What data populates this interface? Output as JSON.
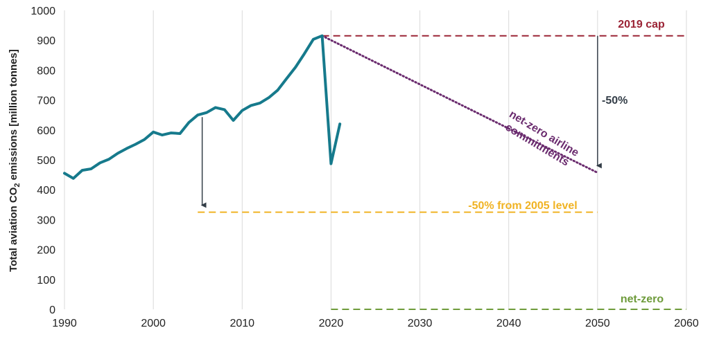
{
  "chart_data": {
    "type": "line",
    "ylabel_main": "Total aviation CO",
    "ylabel_sub": "2",
    "ylabel_rest": " emissions [million tonnes]",
    "xlim": [
      1990,
      2060
    ],
    "ylim": [
      0,
      1000
    ],
    "x_ticks": [
      1990,
      2000,
      2010,
      2020,
      2030,
      2040,
      2050,
      2060
    ],
    "y_ticks": [
      0,
      100,
      200,
      300,
      400,
      500,
      600,
      700,
      800,
      900,
      1000
    ],
    "grid": "vertical",
    "series": [
      {
        "color": "#167a8c",
        "x": [
          1990,
          1991,
          1992,
          1993,
          1994,
          1995,
          1996,
          1997,
          1998,
          1999,
          2000,
          2001,
          2002,
          2003,
          2004,
          2005,
          2006,
          2007,
          2008,
          2009,
          2010,
          2011,
          2012,
          2013,
          2014,
          2015,
          2016,
          2017,
          2018,
          2019,
          2020,
          2021
        ],
        "y": [
          455,
          438,
          465,
          470,
          490,
          502,
          522,
          538,
          552,
          568,
          593,
          583,
          590,
          588,
          625,
          650,
          658,
          675,
          668,
          632,
          665,
          682,
          690,
          708,
          733,
          772,
          810,
          855,
          903,
          915,
          487,
          620
        ]
      }
    ],
    "reference_lines": [
      {
        "label": "2019 cap",
        "color": "#9b2335",
        "style": "dashed",
        "x": [
          2019,
          2060
        ],
        "y": [
          915,
          915
        ]
      },
      {
        "label": "-50% from 2005 level",
        "color": "#f0b323",
        "style": "dashed",
        "x": [
          2005,
          2050
        ],
        "y": [
          325,
          325
        ]
      },
      {
        "label": "net-zero",
        "color": "#6e9b3b",
        "style": "dashed",
        "x": [
          2020,
          2060
        ],
        "y": [
          0,
          0
        ]
      },
      {
        "label": "net-zero airline commitments",
        "label_line1": "net-zero airline",
        "label_line2": "commitments",
        "color": "#6a2b6e",
        "style": "dotted",
        "x": [
          2019,
          2050
        ],
        "y": [
          915,
          457
        ]
      }
    ],
    "arrows": [
      {
        "label": "",
        "color": "#333d47",
        "x": 2005.5,
        "y_from": 643,
        "y_to": 330
      },
      {
        "label": "-50%",
        "color": "#333d47",
        "x": 2050,
        "y_from": 915,
        "y_to": 462
      }
    ]
  }
}
